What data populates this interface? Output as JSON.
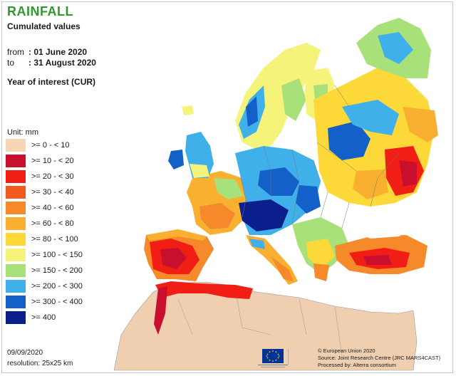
{
  "header": {
    "title": "RAINFALL",
    "subtitle": "Cumulated values",
    "from_label": "from",
    "from_value": ": 01 June 2020",
    "to_label": "to",
    "to_value": ": 31 August 2020",
    "year_of_interest": "Year of interest (CUR)"
  },
  "legend": {
    "unit": "Unit: mm",
    "classes": [
      {
        "label": ">= 0 - < 10",
        "color": "#f7d6b6"
      },
      {
        "label": ">= 10 - < 20",
        "color": "#c8102e"
      },
      {
        "label": ">= 20 - < 30",
        "color": "#f01e14"
      },
      {
        "label": ">= 30 - < 40",
        "color": "#f25a1e"
      },
      {
        "label": ">= 40 - < 60",
        "color": "#f68a2a"
      },
      {
        "label": ">= 60 - < 80",
        "color": "#f9b030"
      },
      {
        "label": ">= 80 - < 100",
        "color": "#fcd838"
      },
      {
        "label": ">= 100 - < 150",
        "color": "#f5f37a"
      },
      {
        "label": ">= 150 - < 200",
        "color": "#a8e07a"
      },
      {
        "label": ">= 200 - < 300",
        "color": "#3fb0ea"
      },
      {
        "label": ">= 300 - < 400",
        "color": "#1260c8"
      },
      {
        "label": ">= 400",
        "color": "#0a1e8c"
      }
    ]
  },
  "footer": {
    "date": "09/09/2020",
    "resolution": "resolution: 25x25 km",
    "credit_1": "© European Union 2020",
    "credit_2": "Source: Joint Research Centre (JRC MARS4CAST)",
    "credit_3": "Processed by: Alterra consortium"
  },
  "colors": {
    "no_data_land": "#efcfb0",
    "border": "#8a8a8a",
    "sea": "#ffffff"
  },
  "icons": {
    "eu_logo": "eu-flag-logo"
  }
}
